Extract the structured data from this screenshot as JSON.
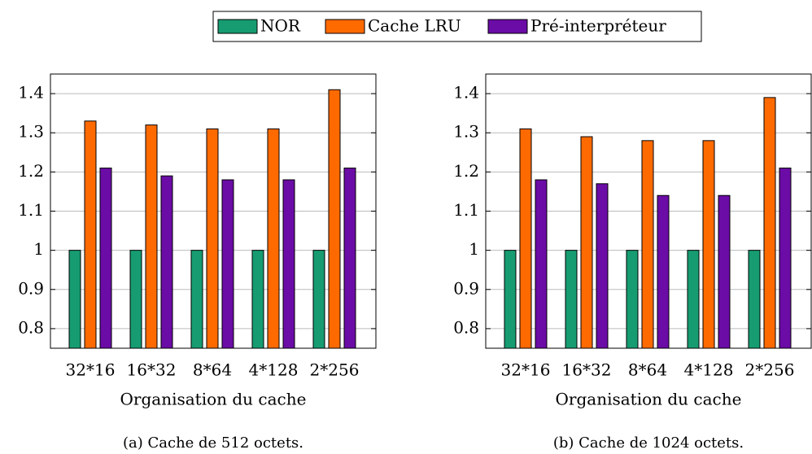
{
  "chart_data": [
    {
      "type": "bar",
      "x_label": "Organisation du cache",
      "caption": "(a) Cache de 512 octets.",
      "categories": [
        "32*16",
        "16*32",
        "8*64",
        "4*128",
        "2*256"
      ],
      "series": [
        {
          "name": "NOR",
          "color": "#179c72",
          "values": [
            1,
            1,
            1,
            1,
            1
          ]
        },
        {
          "name": "Cache LRU",
          "color": "#ff6a00",
          "values": [
            1.33,
            1.32,
            1.31,
            1.31,
            1.41
          ]
        },
        {
          "name": "Pré-interpréteur",
          "color": "#6b0ca6",
          "values": [
            1.21,
            1.19,
            1.18,
            1.18,
            1.21
          ]
        }
      ],
      "ylim": [
        0.75,
        1.45
      ],
      "yticks": [
        0.8,
        0.9,
        1,
        1.1,
        1.2,
        1.3,
        1.4
      ],
      "grid": true
    },
    {
      "type": "bar",
      "x_label": "Organisation du cache",
      "caption": "(b) Cache de 1024 octets.",
      "categories": [
        "32*16",
        "16*32",
        "8*64",
        "4*128",
        "2*256"
      ],
      "series": [
        {
          "color": "#179c72",
          "values": [
            1,
            1,
            1,
            1,
            1
          ]
        },
        {
          "color": "#ff6a00",
          "values": [
            1.31,
            1.29,
            1.28,
            1.28,
            1.39
          ]
        },
        {
          "color": "#6b0ca6",
          "values": [
            1.18,
            1.17,
            1.14,
            1.14,
            1.21
          ]
        }
      ],
      "ylim": [
        0.75,
        1.45
      ],
      "yticks": [
        0.8,
        0.9,
        1,
        1.1,
        1.2,
        1.3,
        1.4
      ],
      "grid": true
    }
  ]
}
